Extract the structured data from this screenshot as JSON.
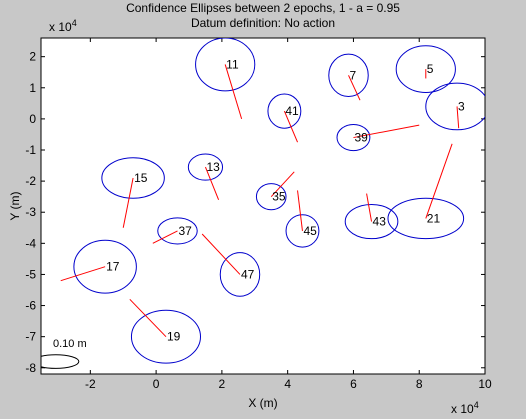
{
  "chart_data": {
    "type": "scatter",
    "title": [
      "Confidence Ellipses between 2 epochs, 1 - a = 0.95",
      "Datum definition: No action"
    ],
    "xlabel": "X (m)",
    "ylabel": "Y (m)",
    "x_exponent": "x 10",
    "x_exponent_power": "4",
    "y_exponent": "x 10",
    "y_exponent_power": "4",
    "xlim": [
      -3.5,
      10
    ],
    "ylim": [
      -8.2,
      2.6
    ],
    "xticks": [
      -2,
      0,
      2,
      4,
      6,
      8,
      10
    ],
    "yticks": [
      2,
      1,
      0,
      -1,
      -2,
      -3,
      -4,
      -5,
      -6,
      -7,
      -8
    ],
    "xtick_labels": [
      "-2",
      "0",
      "2",
      "4",
      "6",
      "8",
      "10"
    ],
    "ytick_labels": [
      "2",
      "1",
      "0",
      "-1",
      "-2",
      "-3",
      "-4",
      "-5",
      "-6",
      "-7",
      "-8"
    ],
    "grid": false,
    "scale_label": "0.10 m",
    "scale_ellipse": {
      "cx": -3.05,
      "cy": -7.8,
      "rx": 0.7,
      "ry": 0.22
    },
    "ellipse_color": "#0000cc",
    "vector_color": "#ff0000",
    "points": [
      {
        "id": "11",
        "x": 2.1,
        "y": 1.75,
        "ellipse": {
          "rx": 0.9,
          "ry": 0.85,
          "angle": 0
        },
        "vector": [
          2.6,
          0.0
        ]
      },
      {
        "id": "7",
        "x": 5.85,
        "y": 1.4,
        "ellipse": {
          "rx": 0.6,
          "ry": 0.68,
          "angle": 0
        },
        "vector": [
          6.2,
          0.6
        ]
      },
      {
        "id": "5",
        "x": 8.2,
        "y": 1.6,
        "ellipse": {
          "rx": 0.9,
          "ry": 0.75,
          "angle": 0
        },
        "vector": [
          8.2,
          1.3
        ]
      },
      {
        "id": "3",
        "x": 9.15,
        "y": 0.4,
        "ellipse": {
          "rx": 0.95,
          "ry": 0.75,
          "angle": 0
        },
        "vector": [
          9.2,
          -0.3
        ]
      },
      {
        "id": "41",
        "x": 3.9,
        "y": 0.25,
        "ellipse": {
          "rx": 0.5,
          "ry": 0.55,
          "angle": 0
        },
        "vector": [
          4.3,
          -0.75
        ]
      },
      {
        "id": "39",
        "x": 6.0,
        "y": -0.6,
        "ellipse": {
          "rx": 0.5,
          "ry": 0.42,
          "angle": 0
        },
        "vector": [
          8.0,
          -0.2
        ]
      },
      {
        "id": "13",
        "x": 1.5,
        "y": -1.55,
        "ellipse": {
          "rx": 0.52,
          "ry": 0.42,
          "angle": 0
        },
        "vector": [
          1.9,
          -2.6
        ]
      },
      {
        "id": "15",
        "x": -0.7,
        "y": -1.9,
        "ellipse": {
          "rx": 0.95,
          "ry": 0.65,
          "angle": 0
        },
        "vector": [
          -1.0,
          -3.5
        ]
      },
      {
        "id": "35",
        "x": 3.5,
        "y": -2.5,
        "ellipse": {
          "rx": 0.45,
          "ry": 0.42,
          "angle": 0
        },
        "vector": [
          4.2,
          -1.7
        ]
      },
      {
        "id": "37",
        "x": 0.65,
        "y": -3.6,
        "ellipse": {
          "rx": 0.6,
          "ry": 0.42,
          "angle": 0
        },
        "vector": [
          -0.1,
          -4.0
        ]
      },
      {
        "id": "45",
        "x": 4.45,
        "y": -3.6,
        "ellipse": {
          "rx": 0.5,
          "ry": 0.52,
          "angle": 0
        },
        "vector": [
          4.3,
          -2.3
        ]
      },
      {
        "id": "43",
        "x": 6.55,
        "y": -3.3,
        "ellipse": {
          "rx": 0.8,
          "ry": 0.55,
          "angle": 0
        },
        "vector": [
          6.4,
          -2.4
        ]
      },
      {
        "id": "21",
        "x": 8.2,
        "y": -3.2,
        "ellipse": {
          "rx": 1.15,
          "ry": 0.65,
          "angle": 0
        },
        "vector": [
          9.0,
          -0.8
        ]
      },
      {
        "id": "17",
        "x": -1.55,
        "y": -4.75,
        "ellipse": {
          "rx": 0.95,
          "ry": 0.85,
          "angle": 0
        },
        "vector": [
          -2.9,
          -5.2
        ]
      },
      {
        "id": "47",
        "x": 2.55,
        "y": -5.0,
        "ellipse": {
          "rx": 0.6,
          "ry": 0.7,
          "angle": 0
        },
        "vector": [
          1.4,
          -3.7
        ]
      },
      {
        "id": "19",
        "x": 0.3,
        "y": -7.0,
        "ellipse": {
          "rx": 1.05,
          "ry": 0.85,
          "angle": 0
        },
        "vector": [
          -0.8,
          -5.8
        ]
      }
    ]
  }
}
